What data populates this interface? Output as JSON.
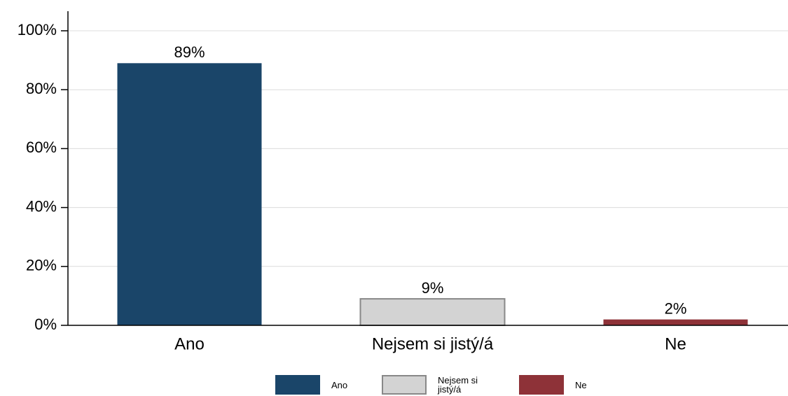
{
  "chart_data": {
    "type": "bar",
    "categories": [
      "Ano",
      "Nejsem si jistý/á",
      "Ne"
    ],
    "values": [
      89,
      9,
      2
    ],
    "value_labels": [
      "89%",
      "9%",
      "2%"
    ],
    "colors": [
      "#1a4569",
      "#d3d3d3",
      "#8e3238"
    ],
    "ylim": [
      0,
      100
    ],
    "yticks": [
      {
        "value": 0,
        "label": "0%"
      },
      {
        "value": 20,
        "label": "20%"
      },
      {
        "value": 40,
        "label": "40%"
      },
      {
        "value": 60,
        "label": "60%"
      },
      {
        "value": 80,
        "label": "80%"
      },
      {
        "value": 100,
        "label": "100%"
      }
    ],
    "grid": true,
    "legend": "bottom"
  }
}
